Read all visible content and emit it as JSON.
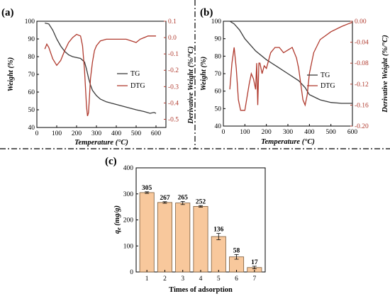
{
  "chart_data": [
    {
      "panel": "(a)",
      "type": "line",
      "xlabel": "Temperature (°C)",
      "ylabel": "Weight (%)",
      "y2label": "Derivative Weight (%/°C)",
      "xlim": [
        0,
        650
      ],
      "ylim": [
        40,
        100
      ],
      "y2lim": [
        -0.55,
        0.1
      ],
      "xticks": [
        "0",
        "100",
        "200",
        "300",
        "400",
        "500",
        "600"
      ],
      "yticks": [
        "40",
        "50",
        "60",
        "70",
        "80",
        "90",
        "100"
      ],
      "y2ticks": [
        "0.1",
        "0.0",
        "-0.1",
        "-0.2",
        "-0.3",
        "-0.4",
        "-0.5"
      ],
      "colors": {
        "TG": "#3a3a3a",
        "DTG": "#b03a2e"
      },
      "series": [
        {
          "name": "TG",
          "axis": "left",
          "x": [
            40,
            60,
            80,
            100,
            120,
            140,
            160,
            180,
            200,
            220,
            240,
            250,
            260,
            270,
            280,
            300,
            320,
            350,
            400,
            450,
            500,
            540,
            570,
            590,
            600
          ],
          "y": [
            99,
            98.5,
            95,
            90,
            86,
            83,
            81,
            80,
            79.5,
            79,
            77,
            73,
            68,
            64,
            61,
            58,
            56,
            54.5,
            53,
            51.5,
            50,
            49,
            48,
            48.5,
            48
          ]
        },
        {
          "name": "DTG",
          "axis": "right",
          "x": [
            40,
            50,
            60,
            80,
            100,
            120,
            140,
            160,
            180,
            200,
            220,
            230,
            240,
            250,
            255,
            260,
            265,
            270,
            280,
            290,
            300,
            320,
            350,
            400,
            450,
            500,
            520,
            540,
            560,
            580,
            600
          ],
          "y": [
            -0.07,
            -0.04,
            -0.06,
            -0.13,
            -0.17,
            -0.14,
            -0.08,
            -0.03,
            0.0,
            0.02,
            0.01,
            -0.05,
            -0.2,
            -0.42,
            -0.48,
            -0.46,
            -0.36,
            -0.25,
            -0.15,
            -0.08,
            -0.05,
            -0.02,
            -0.01,
            -0.01,
            -0.01,
            -0.03,
            -0.01,
            0.0,
            0.01,
            0.01,
            0.01
          ]
        }
      ],
      "legend": {
        "placement": "right",
        "entries": [
          "TG",
          "DTG"
        ]
      }
    },
    {
      "panel": "(b)",
      "type": "line",
      "xlabel": "Temperature (°C)",
      "ylabel": "Weight (%)",
      "y2label": "Derivative Weight (%/°C)",
      "xlim": [
        0,
        600
      ],
      "ylim": [
        40,
        100
      ],
      "y2lim": [
        -0.2,
        0.0
      ],
      "xticks": [
        "0",
        "100",
        "200",
        "300",
        "400",
        "500",
        "600"
      ],
      "yticks": [
        "40",
        "50",
        "60",
        "70",
        "80",
        "90",
        "100"
      ],
      "y2ticks": [
        "0.00",
        "-0.04",
        "-0.08",
        "-0.12",
        "-0.16",
        "-0.20"
      ],
      "colors": {
        "TG": "#3a3a3a",
        "DTG": "#b03a2e"
      },
      "series": [
        {
          "name": "TG",
          "axis": "left",
          "x": [
            30,
            50,
            75,
            100,
            150,
            200,
            250,
            300,
            350,
            380,
            400,
            450,
            500,
            550,
            600
          ],
          "y": [
            100,
            98.5,
            95,
            90,
            83,
            78,
            74,
            70,
            66,
            62,
            58,
            55,
            53.5,
            53,
            53
          ]
        },
        {
          "name": "DTG",
          "axis": "right",
          "x": [
            30,
            40,
            50,
            60,
            70,
            80,
            100,
            120,
            130,
            140,
            150,
            155,
            160,
            165,
            170,
            180,
            190,
            200,
            220,
            240,
            260,
            280,
            300,
            320,
            340,
            350,
            360,
            370,
            380,
            390,
            400,
            420,
            450,
            500,
            550,
            580,
            600
          ],
          "y": [
            -0.13,
            -0.08,
            -0.05,
            -0.09,
            -0.15,
            -0.17,
            -0.17,
            -0.12,
            -0.1,
            -0.11,
            -0.13,
            -0.08,
            -0.16,
            -0.08,
            -0.08,
            -0.1,
            -0.085,
            -0.09,
            -0.06,
            -0.05,
            -0.05,
            -0.06,
            -0.055,
            -0.05,
            -0.07,
            -0.09,
            -0.12,
            -0.15,
            -0.16,
            -0.14,
            -0.1,
            -0.06,
            -0.035,
            -0.02,
            -0.01,
            -0.005,
            -0.002
          ]
        }
      ],
      "legend": {
        "placement": "right",
        "entries": [
          "TG",
          "DTG"
        ]
      }
    },
    {
      "panel": "(c)",
      "type": "bar",
      "xlabel": "Times of adsorption",
      "ylabel": "qe (mg/g)",
      "ylim": [
        0,
        400
      ],
      "yticks": [
        "0",
        "100",
        "200",
        "300",
        "400"
      ],
      "categories": [
        "1",
        "2",
        "3",
        "4",
        "5",
        "6",
        "7"
      ],
      "values": [
        305,
        267,
        265,
        252,
        136,
        58,
        17
      ],
      "errors": [
        3,
        3,
        6,
        3,
        12,
        9,
        5
      ],
      "data_labels": [
        "305",
        "267",
        "265",
        "252",
        "136",
        "58",
        "17"
      ],
      "colors": {
        "bar": "#f8c89c",
        "edge": "#7a5a3a"
      }
    }
  ]
}
